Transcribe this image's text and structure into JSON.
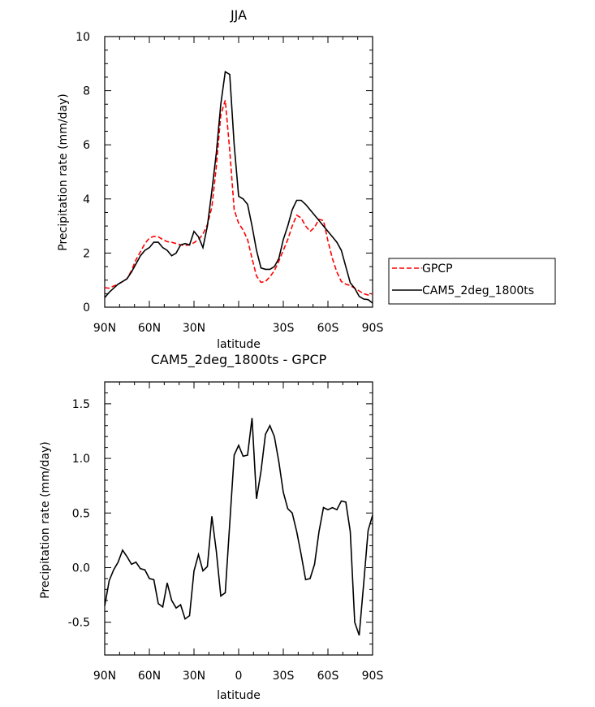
{
  "chart_data": [
    {
      "type": "line",
      "title": "JJA",
      "xlabel": "latitude",
      "ylabel": "Precipitation rate (mm/day)",
      "xlim": [
        -90,
        90
      ],
      "ylim": [
        0,
        10
      ],
      "x_ticks": [
        -90,
        -60,
        -30,
        0,
        30,
        60,
        90
      ],
      "x_tick_labels": [
        "90N",
        "60N",
        "30N",
        "",
        "30S",
        "60S",
        "90S"
      ],
      "y_ticks": [
        0,
        2,
        4,
        6,
        8,
        10
      ],
      "y_tick_labels": [
        "0",
        "2",
        "4",
        "6",
        "8",
        "10"
      ],
      "legend": {
        "placement": "right"
      },
      "x": [
        -90,
        -87,
        -84,
        -81,
        -78,
        -75,
        -72,
        -69,
        -66,
        -63,
        -60,
        -57,
        -54,
        -51,
        -48,
        -45,
        -42,
        -39,
        -36,
        -33,
        -30,
        -27,
        -24,
        -21,
        -18,
        -15,
        -12,
        -9,
        -6,
        -3,
        0,
        3,
        6,
        9,
        12,
        15,
        18,
        21,
        24,
        27,
        30,
        33,
        36,
        39,
        42,
        45,
        48,
        51,
        54,
        57,
        60,
        63,
        66,
        69,
        72,
        75,
        78,
        81,
        84,
        87,
        90
      ],
      "series": [
        {
          "name": "GPCP",
          "color": "#ff0000",
          "dash": "dashed",
          "values": [
            0.72,
            0.7,
            0.78,
            0.85,
            0.95,
            1.05,
            1.35,
            1.75,
            2.05,
            2.35,
            2.55,
            2.62,
            2.6,
            2.5,
            2.42,
            2.4,
            2.35,
            2.3,
            2.28,
            2.3,
            2.38,
            2.5,
            2.7,
            3.05,
            3.7,
            5.2,
            7.1,
            7.65,
            5.8,
            3.6,
            3.1,
            2.85,
            2.5,
            1.8,
            1.15,
            0.92,
            0.95,
            1.12,
            1.35,
            1.7,
            2.1,
            2.5,
            3.0,
            3.4,
            3.3,
            3.0,
            2.8,
            2.95,
            3.25,
            3.2,
            2.45,
            1.8,
            1.3,
            0.95,
            0.85,
            0.8,
            0.7,
            0.6,
            0.5,
            0.45,
            0.5
          ]
        },
        {
          "name": "CAM5_2deg_1800ts",
          "color": "#000000",
          "dash": "solid",
          "values": [
            0.35,
            0.55,
            0.7,
            0.85,
            0.95,
            1.05,
            1.3,
            1.6,
            1.9,
            2.1,
            2.2,
            2.4,
            2.4,
            2.2,
            2.1,
            1.9,
            2.0,
            2.3,
            2.35,
            2.3,
            2.8,
            2.6,
            2.2,
            3.0,
            4.3,
            5.7,
            7.5,
            8.7,
            8.6,
            6.0,
            4.1,
            4.0,
            3.8,
            3.0,
            2.1,
            1.45,
            1.4,
            1.4,
            1.5,
            1.8,
            2.5,
            3.0,
            3.6,
            3.95,
            3.95,
            3.8,
            3.6,
            3.4,
            3.2,
            3.0,
            2.8,
            2.6,
            2.4,
            2.1,
            1.5,
            0.9,
            0.7,
            0.4,
            0.3,
            0.28,
            0.15
          ]
        }
      ]
    },
    {
      "type": "line",
      "title": "CAM5_2deg_1800ts - GPCP",
      "xlabel": "latitude",
      "ylabel": "Precipitation rate (mm/day)",
      "xlim": [
        -90,
        90
      ],
      "ylim": [
        -0.8,
        1.7
      ],
      "x_ticks": [
        -90,
        -60,
        -30,
        0,
        30,
        60,
        90
      ],
      "x_tick_labels": [
        "90N",
        "60N",
        "30N",
        "0",
        "30S",
        "60S",
        "90S"
      ],
      "y_ticks": [
        -0.5,
        0.0,
        0.5,
        1.0,
        1.5
      ],
      "y_tick_labels": [
        "-0.5",
        "0.0",
        "0.5",
        "1.0",
        "1.5"
      ],
      "x": [
        -90,
        -87,
        -84,
        -81,
        -78,
        -75,
        -72,
        -69,
        -66,
        -63,
        -60,
        -57,
        -54,
        -51,
        -48,
        -45,
        -42,
        -39,
        -36,
        -33,
        -30,
        -27,
        -24,
        -21,
        -18,
        -15,
        -12,
        -9,
        -6,
        -3,
        0,
        3,
        6,
        9,
        12,
        15,
        18,
        21,
        24,
        27,
        30,
        33,
        36,
        39,
        42,
        45,
        48,
        51,
        54,
        57,
        60,
        63,
        66,
        69,
        72,
        75,
        78,
        81,
        84,
        87,
        90
      ],
      "series": [
        {
          "color": "#000000",
          "dash": "solid",
          "values": [
            -0.35,
            -0.12,
            -0.02,
            0.05,
            0.16,
            0.1,
            0.03,
            0.05,
            -0.01,
            -0.02,
            -0.1,
            -0.11,
            -0.33,
            -0.36,
            -0.14,
            -0.3,
            -0.37,
            -0.34,
            -0.47,
            -0.44,
            -0.03,
            0.12,
            -0.03,
            0.01,
            0.47,
            0.15,
            -0.26,
            -0.23,
            0.4,
            1.03,
            1.12,
            1.02,
            1.03,
            1.37,
            0.63,
            0.88,
            1.22,
            1.3,
            1.2,
            0.97,
            0.69,
            0.54,
            0.5,
            0.33,
            0.12,
            -0.11,
            -0.1,
            0.03,
            0.33,
            0.55,
            0.53,
            0.55,
            0.53,
            0.61,
            0.6,
            0.33,
            -0.5,
            -0.62,
            -0.15,
            0.34,
            0.48
          ]
        }
      ]
    }
  ]
}
